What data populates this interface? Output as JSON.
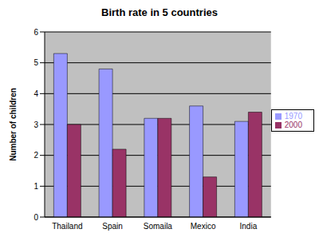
{
  "chart_data": {
    "type": "bar",
    "title": "Birth rate in 5 countries",
    "y_label": "Number of children",
    "categories": [
      "Thailand",
      "Spain",
      "Somaila",
      "Mexico",
      "India"
    ],
    "series": [
      {
        "name": "1970",
        "color": "#9999ff",
        "values": [
          5.3,
          4.8,
          3.2,
          3.6,
          3.1
        ]
      },
      {
        "name": "2000",
        "color": "#993366",
        "values": [
          3.0,
          2.2,
          3.2,
          1.3,
          3.4
        ]
      }
    ],
    "ylim": [
      0,
      6
    ],
    "yticks": [
      0,
      1,
      2,
      3,
      4,
      5,
      6
    ],
    "grid": true,
    "legend": "right"
  }
}
